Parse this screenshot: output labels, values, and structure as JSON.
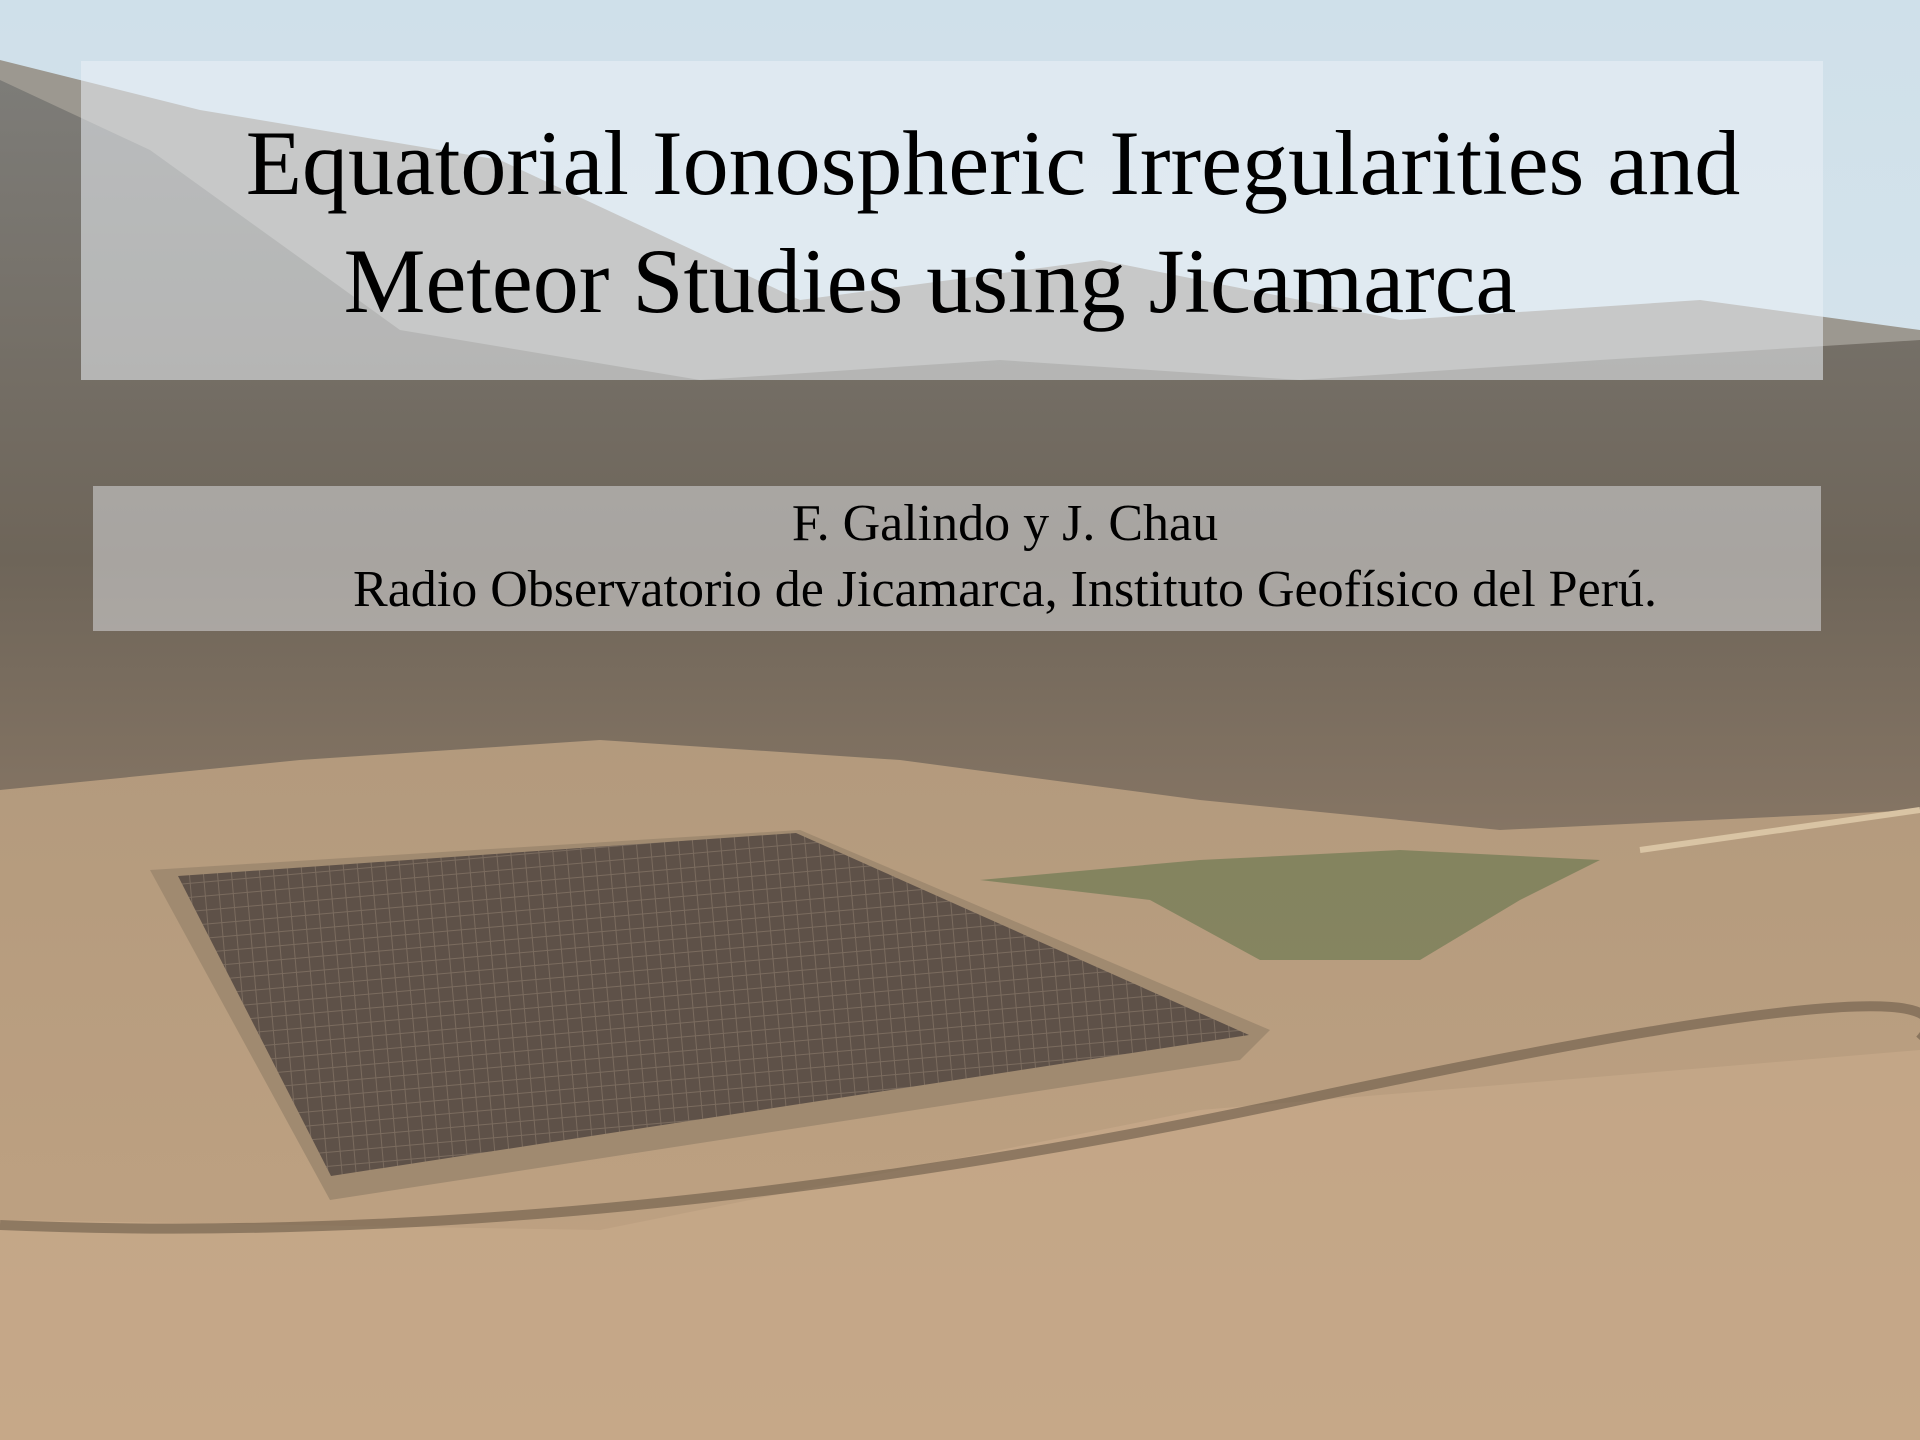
{
  "title": {
    "lines": [
      "Equatorial Ionospheric Irregularities and",
      "Meteor Studies using Jicamarca"
    ]
  },
  "subtitle": {
    "authors": "F. Galindo y J. Chau",
    "affiliation": "Radio Observatorio de Jicamarca, Instituto Geofísico del Perú."
  }
}
